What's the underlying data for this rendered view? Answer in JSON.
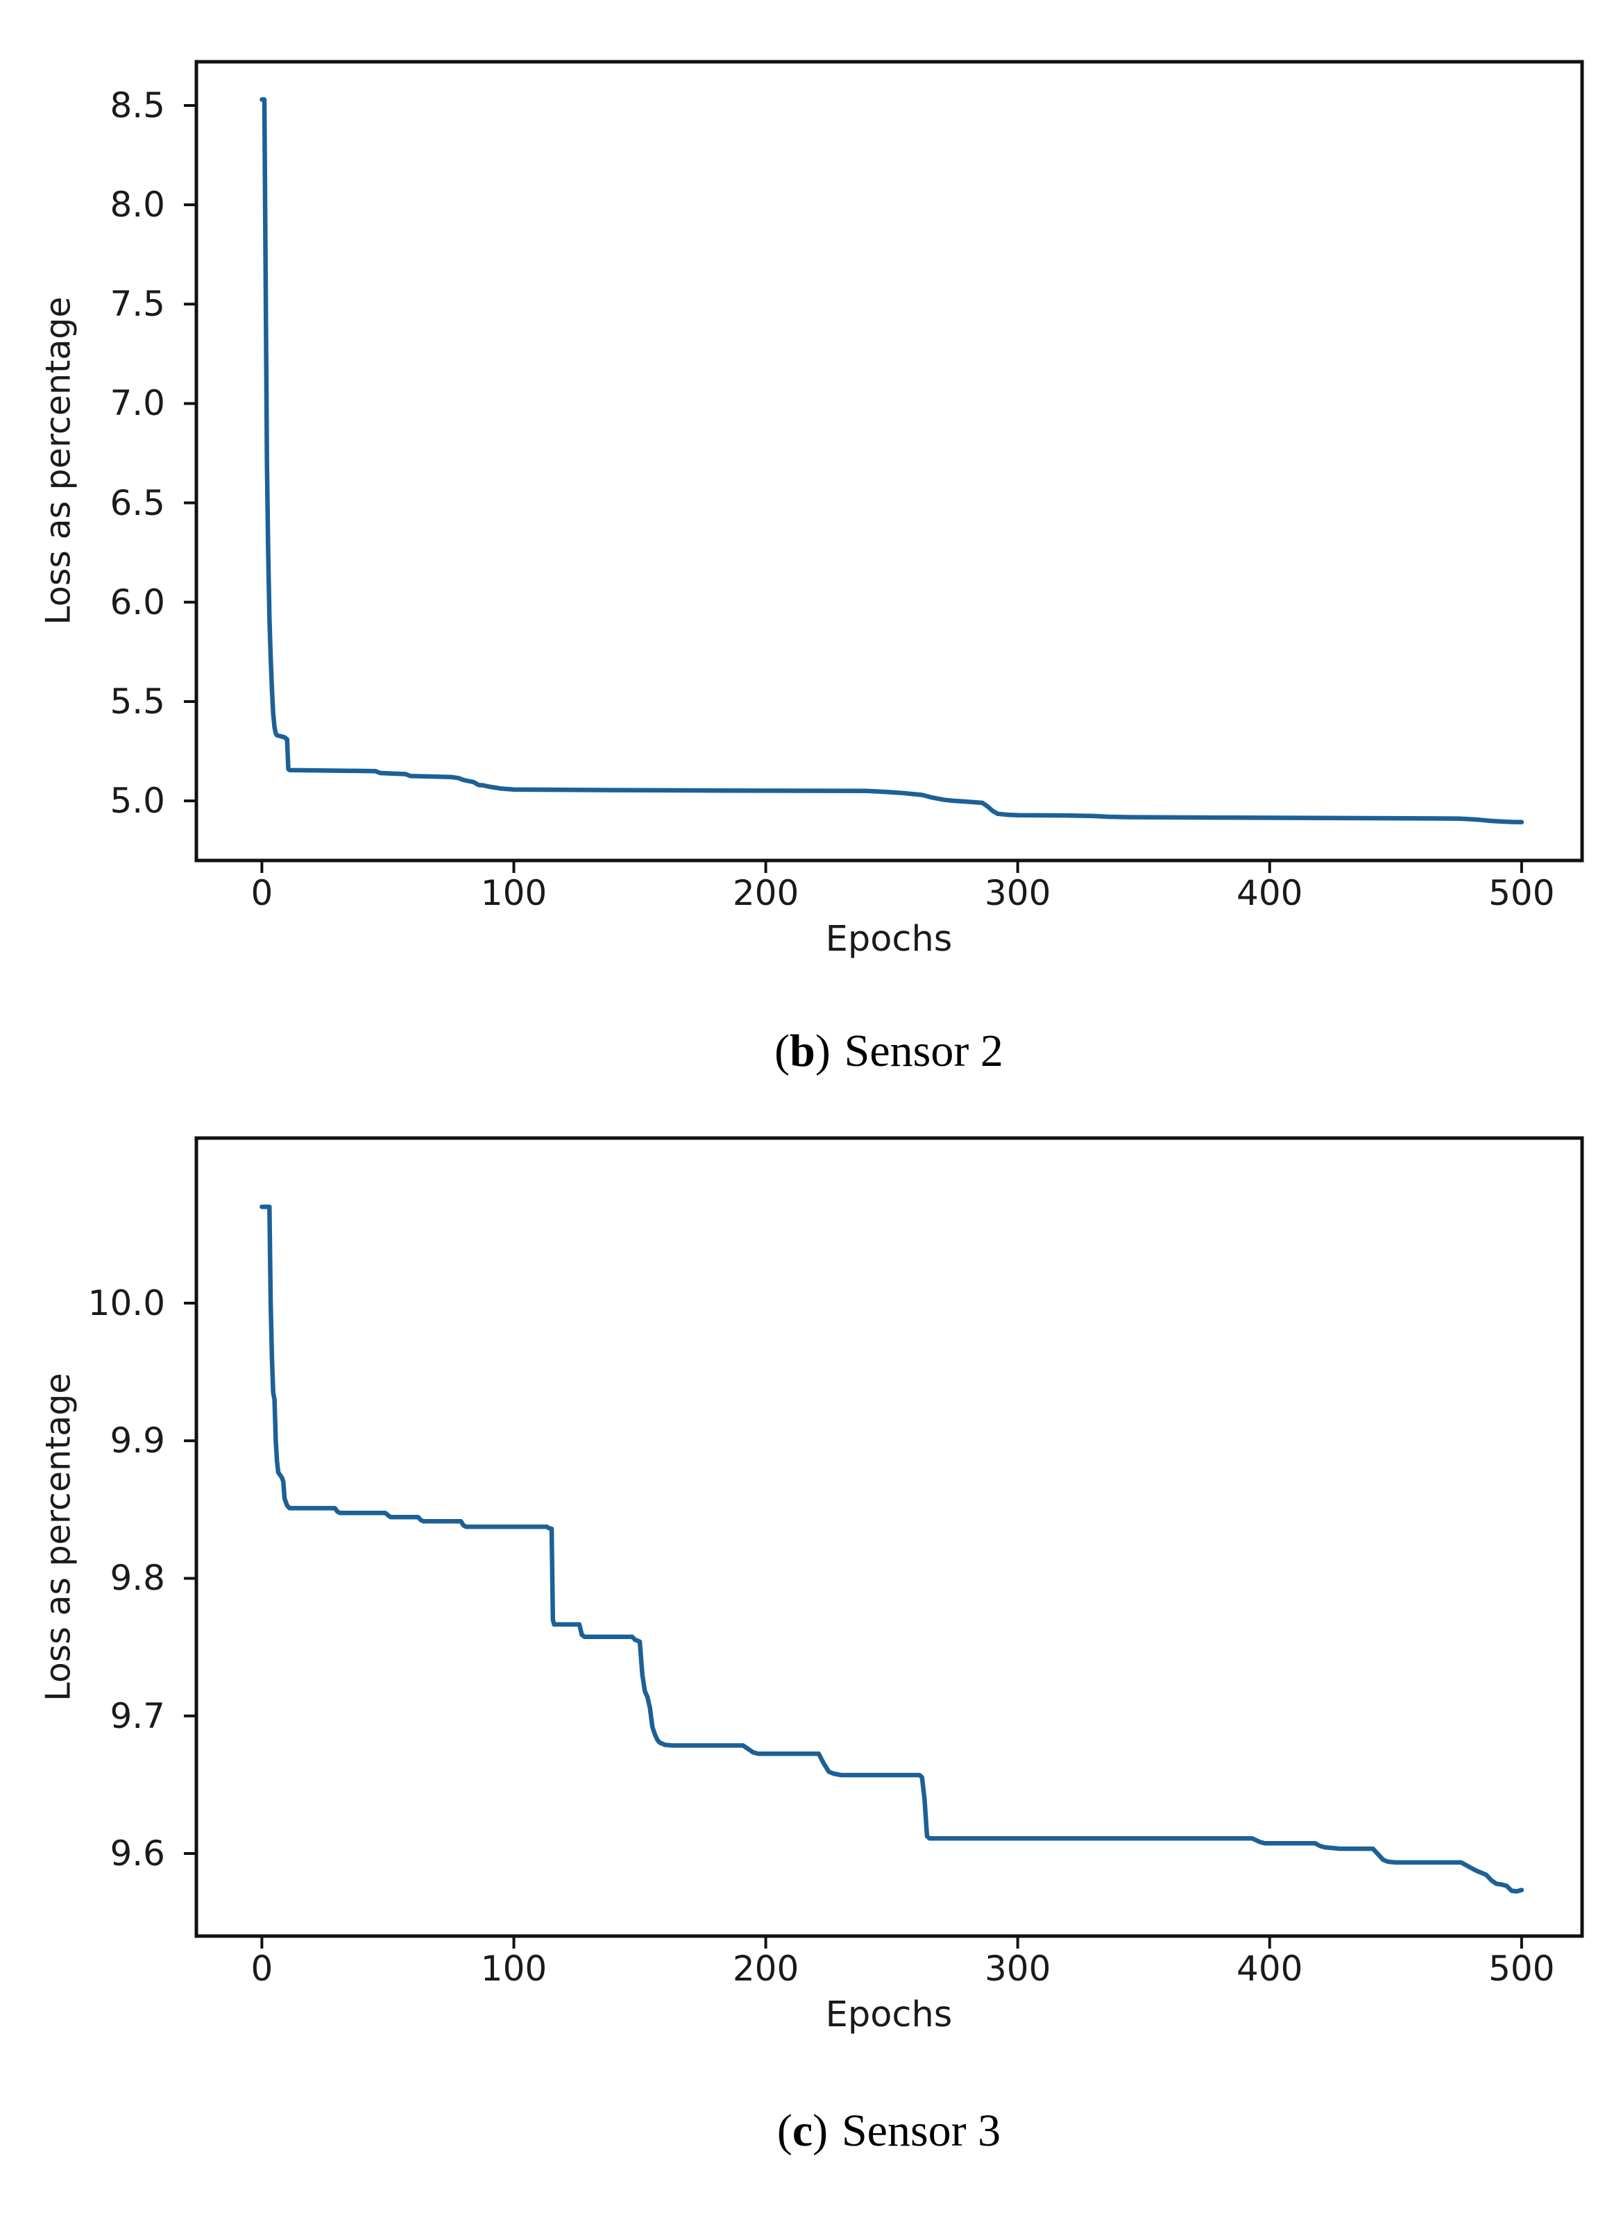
{
  "figure": {
    "background": "#ffffff",
    "line_color": "#1d6096",
    "axis_color": "#111111",
    "tick_color": "#1a1a1a"
  },
  "charts": [
    {
      "id": "sensor2",
      "caption": {
        "prefix": "(",
        "letter": "b",
        "suffix": ")",
        "label": "Sensor 2"
      },
      "chart_data": {
        "type": "line",
        "title": "",
        "xlabel": "Epochs",
        "ylabel": "Loss as percentage",
        "xlim": [
          -26,
          524
        ],
        "ylim": [
          4.7,
          8.72
        ],
        "grid": false,
        "legend": "none",
        "xticks": [
          0,
          100,
          200,
          300,
          400,
          500
        ],
        "xtick_labels": [
          "0",
          "100",
          "200",
          "300",
          "400",
          "500"
        ],
        "yticks": [
          5.0,
          5.5,
          6.0,
          6.5,
          7.0,
          7.5,
          8.0,
          8.5
        ],
        "ytick_labels": [
          "5.0",
          "5.5",
          "6.0",
          "6.5",
          "7.0",
          "7.5",
          "8.0",
          "8.5"
        ],
        "x": [
          0,
          1,
          1.5,
          2,
          2.5,
          3,
          3.5,
          4,
          4.5,
          5,
          5.5,
          6,
          9,
          10,
          10.5,
          11,
          45,
          47,
          57,
          59,
          75,
          78,
          80,
          82,
          84,
          86,
          88,
          90,
          92,
          95,
          100,
          140,
          180,
          240,
          248,
          254,
          258,
          262,
          265,
          268,
          271,
          275,
          279,
          283,
          286,
          288,
          290,
          292,
          296,
          300,
          320,
          330,
          336,
          345,
          380,
          420,
          455,
          475,
          479,
          483,
          487,
          491,
          496,
          500
        ],
        "y": [
          8.53,
          8.53,
          7.6,
          6.7,
          6.25,
          5.92,
          5.72,
          5.56,
          5.44,
          5.37,
          5.34,
          5.33,
          5.32,
          5.31,
          5.16,
          5.155,
          5.15,
          5.14,
          5.135,
          5.125,
          5.12,
          5.115,
          5.105,
          5.1,
          5.095,
          5.08,
          5.078,
          5.072,
          5.068,
          5.062,
          5.057,
          5.054,
          5.052,
          5.05,
          5.045,
          5.04,
          5.035,
          5.03,
          5.02,
          5.012,
          5.005,
          5.0,
          4.997,
          4.993,
          4.99,
          4.972,
          4.95,
          4.935,
          4.93,
          4.928,
          4.926,
          4.924,
          4.92,
          4.918,
          4.916,
          4.914,
          4.912,
          4.911,
          4.908,
          4.905,
          4.9,
          4.897,
          4.894,
          4.893
        ]
      }
    },
    {
      "id": "sensor3",
      "caption": {
        "prefix": "(",
        "letter": "c",
        "suffix": ")",
        "label": "Sensor 3"
      },
      "chart_data": {
        "type": "line",
        "title": "",
        "xlabel": "Epochs",
        "ylabel": "Loss as percentage",
        "xlim": [
          -26,
          524
        ],
        "ylim": [
          9.54,
          10.12
        ],
        "grid": false,
        "legend": "none",
        "xticks": [
          0,
          100,
          200,
          300,
          400,
          500
        ],
        "xtick_labels": [
          "0",
          "100",
          "200",
          "300",
          "400",
          "500"
        ],
        "yticks": [
          9.6,
          9.7,
          9.8,
          9.9,
          10.0
        ],
        "ytick_labels": [
          "9.6",
          "9.7",
          "9.8",
          "9.9",
          "10.0"
        ],
        "x": [
          0,
          3,
          3.5,
          4,
          4.5,
          5,
          5.5,
          6,
          6.5,
          8,
          8.5,
          9,
          10,
          11,
          29,
          30,
          31,
          49,
          50,
          51,
          62,
          63,
          64,
          79,
          80,
          81,
          113,
          114,
          115,
          115.5,
          116,
          126,
          127,
          128,
          147,
          148,
          150,
          151,
          152,
          153,
          154,
          155,
          156,
          157,
          158,
          160,
          163,
          191,
          193,
          195,
          197,
          221,
          223,
          225,
          227,
          230,
          261,
          262,
          263,
          264,
          265,
          270,
          393,
          396,
          398,
          418,
          420,
          422,
          428,
          441,
          443,
          445,
          447,
          450,
          476,
          478,
          480,
          482,
          484,
          486,
          488,
          490,
          492,
          494,
          496,
          498,
          500
        ],
        "y": [
          10.07,
          10.07,
          10.0,
          9.96,
          9.935,
          9.93,
          9.9,
          9.885,
          9.877,
          9.873,
          9.87,
          9.858,
          9.853,
          9.851,
          9.851,
          9.8485,
          9.8475,
          9.8475,
          9.846,
          9.8445,
          9.8445,
          9.8425,
          9.8415,
          9.8415,
          9.8385,
          9.8375,
          9.8375,
          9.8365,
          9.836,
          9.77,
          9.7665,
          9.7665,
          9.759,
          9.7575,
          9.7575,
          9.7555,
          9.754,
          9.73,
          9.718,
          9.714,
          9.706,
          9.692,
          9.6865,
          9.6825,
          9.6805,
          9.679,
          9.6785,
          9.6785,
          9.676,
          9.6735,
          9.6725,
          9.6725,
          9.6655,
          9.6595,
          9.658,
          9.657,
          9.657,
          9.6555,
          9.64,
          9.6125,
          9.611,
          9.611,
          9.611,
          9.6085,
          9.6075,
          9.6075,
          9.6055,
          9.6045,
          9.6035,
          9.6035,
          9.5995,
          9.5955,
          9.594,
          9.5935,
          9.5935,
          9.5915,
          9.5895,
          9.5875,
          9.586,
          9.5845,
          9.5805,
          9.578,
          9.5775,
          9.5765,
          9.573,
          9.5725,
          9.5735
        ]
      }
    }
  ]
}
